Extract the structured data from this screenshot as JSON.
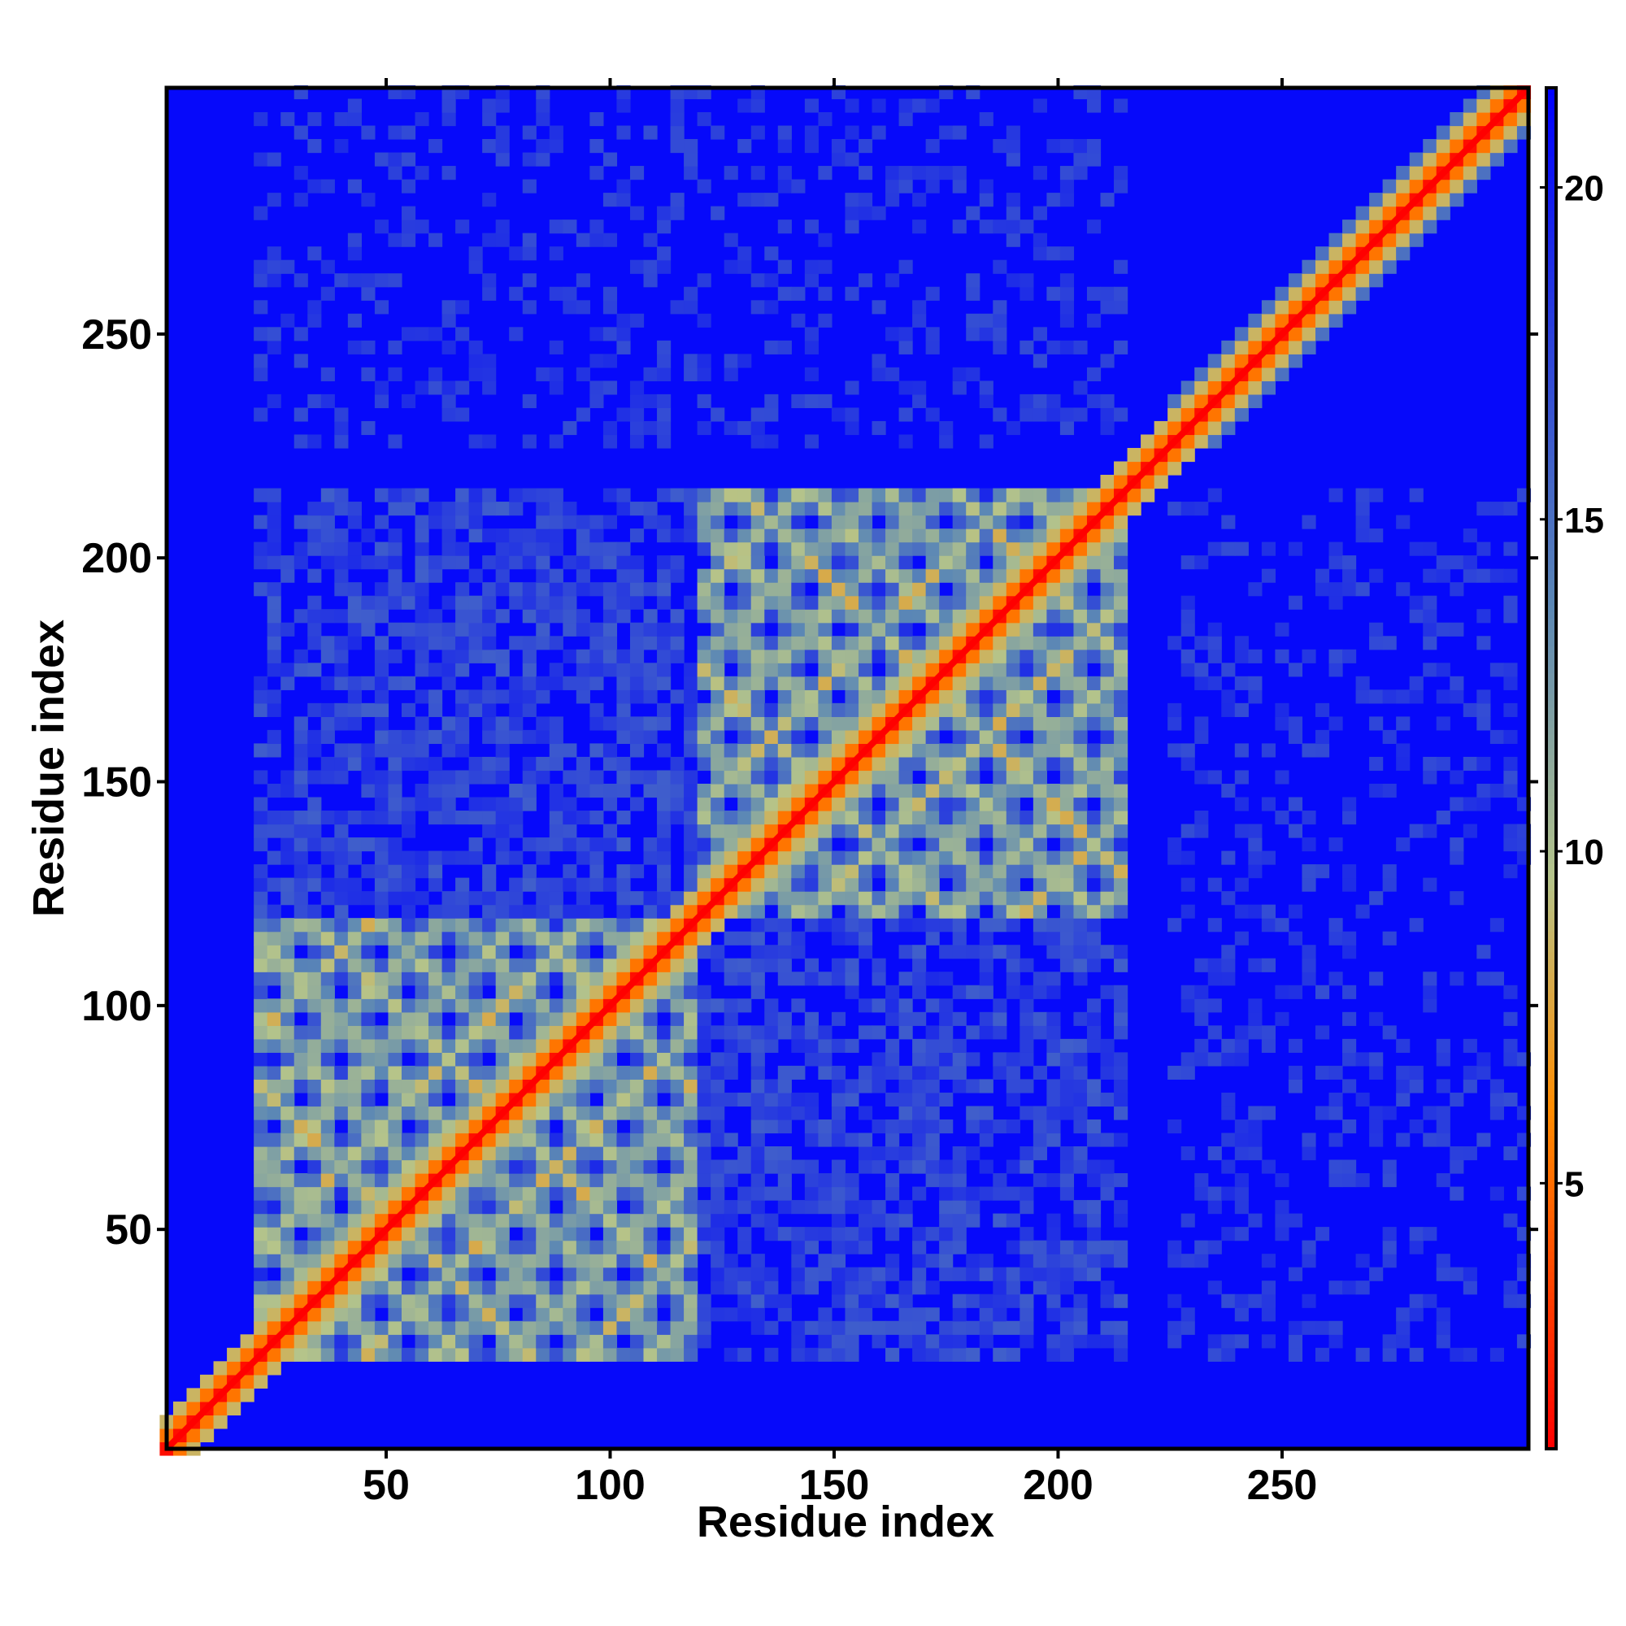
{
  "chart_data": {
    "type": "heatmap",
    "title": "",
    "xlabel": "Residue index",
    "ylabel": "Residue index",
    "xlim": [
      1,
      305
    ],
    "ylim": [
      1,
      305
    ],
    "x_ticks": [
      50,
      100,
      150,
      200,
      250
    ],
    "x_tick_labels": [
      "50",
      "100",
      "150",
      "200",
      "250"
    ],
    "y_ticks": [
      50,
      100,
      150,
      200,
      250
    ],
    "y_tick_labels": [
      "50",
      "100",
      "150",
      "200",
      "250"
    ],
    "colorbar": {
      "range": [
        1,
        21.5
      ],
      "ticks": [
        5,
        10,
        15,
        20
      ],
      "tick_labels": [
        "5",
        "10",
        "15",
        "20"
      ],
      "colors": [
        "#ff0000",
        "#ff8c00",
        "#b5c48a",
        "#5b87b5",
        "#0000ff"
      ],
      "stops": [
        0,
        0.25,
        0.42,
        0.62,
        1
      ]
    },
    "description_values": {
      "diagonal": 1.0,
      "near_diagonal_band_width": 6,
      "cutoff_background": 21
    },
    "domains": [
      {
        "start": 20,
        "end": 120
      },
      {
        "start": 120,
        "end": 215
      },
      {
        "start": 225,
        "end": 305
      }
    ],
    "grid": false,
    "legend": "colorbar-right"
  }
}
